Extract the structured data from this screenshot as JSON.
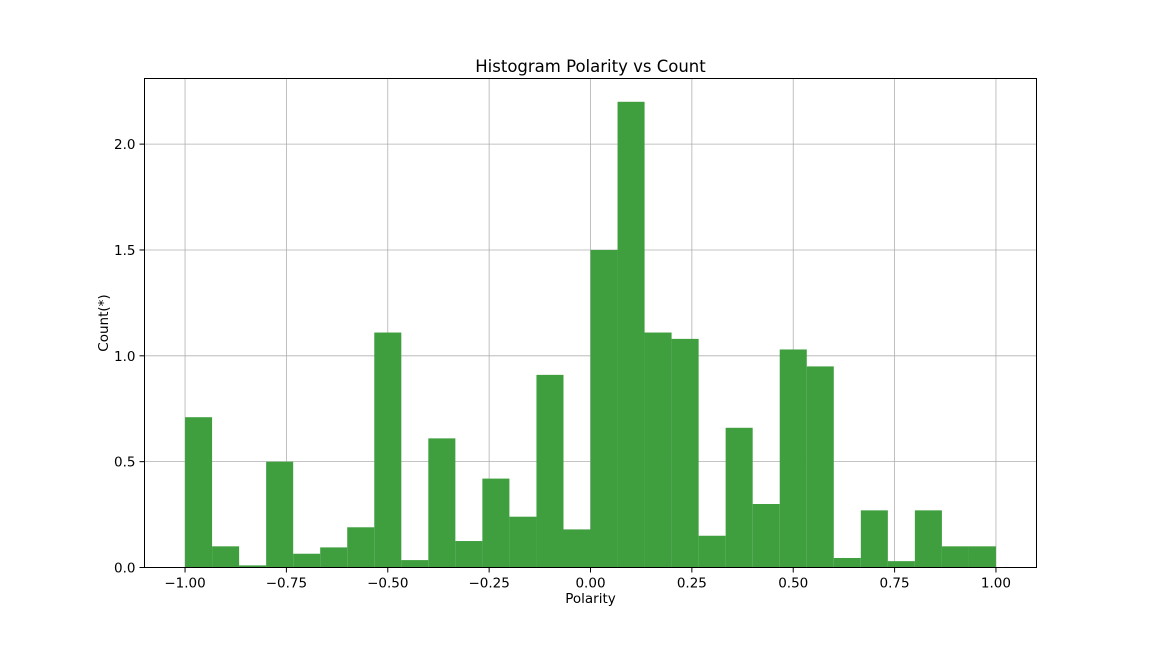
{
  "chart_data": {
    "type": "bar",
    "title": "Histogram Polarity vs Count",
    "xlabel": "Polarity",
    "ylabel": "Count(*)",
    "xlim": [
      -1.1,
      1.1
    ],
    "ylim": [
      0,
      2.31
    ],
    "xticks": [
      -1.0,
      -0.75,
      -0.5,
      -0.25,
      0.0,
      0.25,
      0.5,
      0.75,
      1.0
    ],
    "xtick_labels": [
      "−1.00",
      "−0.75",
      "−0.50",
      "−0.25",
      "0.00",
      "0.25",
      "0.50",
      "0.75",
      "1.00"
    ],
    "yticks": [
      0.0,
      0.5,
      1.0,
      1.5,
      2.0
    ],
    "ytick_labels": [
      "0.0",
      "0.5",
      "1.0",
      "1.5",
      "2.0"
    ],
    "grid": true,
    "bar_color": "#3f9f3f",
    "bin_width": 0.0667,
    "bin_starts": [
      -1.0,
      -0.9333,
      -0.8667,
      -0.8,
      -0.7333,
      -0.6667,
      -0.6,
      -0.5333,
      -0.4667,
      -0.4,
      -0.3333,
      -0.2667,
      -0.2,
      -0.1333,
      -0.0667,
      0.0,
      0.0667,
      0.1333,
      0.2,
      0.2667,
      0.3333,
      0.4,
      0.4667,
      0.5333,
      0.6,
      0.6667,
      0.7333,
      0.8,
      0.8667,
      0.9333
    ],
    "values": [
      0.71,
      0.1,
      0.01,
      0.5,
      0.065,
      0.095,
      0.19,
      1.11,
      0.035,
      0.61,
      0.125,
      0.42,
      0.24,
      0.91,
      0.18,
      1.5,
      2.2,
      1.11,
      1.08,
      0.15,
      0.66,
      0.3,
      1.03,
      0.95,
      0.045,
      0.27,
      0.03,
      0.27,
      0.1,
      0.1
    ]
  }
}
